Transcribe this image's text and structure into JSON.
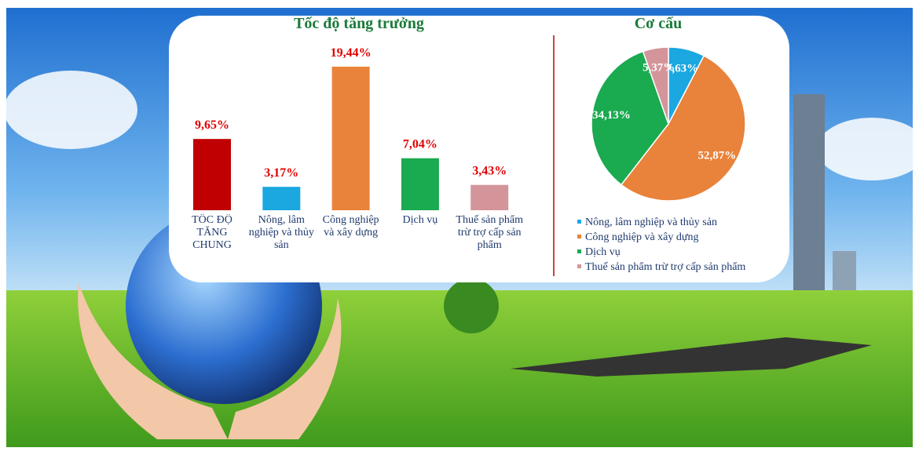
{
  "chart_data": [
    {
      "type": "bar",
      "title": "Tốc độ tăng trưởng",
      "categories": [
        "TỐC ĐỘ TĂNG CHUNG",
        "Nông, lâm nghiệp và thủy sản",
        "Công nghiệp và xây dựng",
        "Dịch vụ",
        "Thuế sản phẩm trừ trợ cấp sản phẩm"
      ],
      "values": [
        9.65,
        3.17,
        19.44,
        7.04,
        3.43
      ],
      "value_labels": [
        "9,65%",
        "3,17%",
        "19,44%",
        "7,04%",
        "3,43%"
      ],
      "colors": [
        "#c00000",
        "#1ba7e0",
        "#e9823a",
        "#1aaa50",
        "#d4959a"
      ]
    },
    {
      "type": "pie",
      "title": "Cơ cấu",
      "categories": [
        "Nông, lâm nghiệp và thủy sản",
        "Công nghiệp và xây dựng",
        "Dịch vụ",
        "Thuế sản phẩm trừ trợ cấp sản phẩm"
      ],
      "values": [
        7.63,
        52.87,
        34.13,
        5.37
      ],
      "value_labels": [
        "7,63%",
        "52,87%",
        "34,13%",
        "5,37%"
      ],
      "colors": [
        "#1ba7e0",
        "#e9823a",
        "#1aaa50",
        "#d4959a"
      ],
      "legend": "bottom"
    }
  ]
}
